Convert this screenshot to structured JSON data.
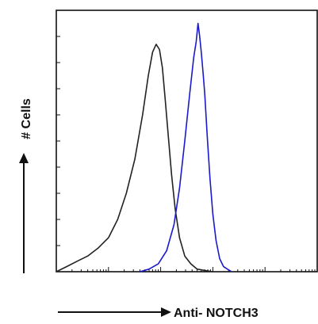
{
  "chart_data": {
    "type": "line",
    "xlabel": "Anti- NOTCH3",
    "ylabel": "# Cells",
    "x_scale": "log",
    "xlim": [
      1,
      100000
    ],
    "ylim": [
      0,
      100
    ],
    "grid": false,
    "legend": "none",
    "series": [
      {
        "color": "#222222",
        "x": [
          1,
          1.6,
          2.5,
          4,
          6.3,
          10,
          15,
          22,
          32,
          45,
          58,
          70,
          82,
          95,
          108,
          122,
          140,
          162,
          190,
          230,
          290,
          380,
          500,
          700,
          1000
        ],
        "y": [
          0,
          2,
          4,
          6,
          9,
          13,
          20,
          30,
          43,
          60,
          75,
          84,
          87,
          85,
          78,
          66,
          52,
          37,
          24,
          13,
          6,
          3,
          1,
          0.5,
          0
        ]
      },
      {
        "color": "#1a1acc",
        "x": [
          40,
          60,
          90,
          130,
          180,
          230,
          290,
          360,
          430,
          480,
          520,
          560,
          600,
          650,
          700,
          780,
          880,
          1000,
          1150,
          1350,
          1600,
          1900,
          2300
        ],
        "y": [
          0,
          1,
          3,
          8,
          18,
          32,
          50,
          68,
          82,
          88,
          95,
          90,
          84,
          76,
          68,
          52,
          36,
          22,
          12,
          5,
          2,
          1,
          0
        ]
      }
    ]
  }
}
